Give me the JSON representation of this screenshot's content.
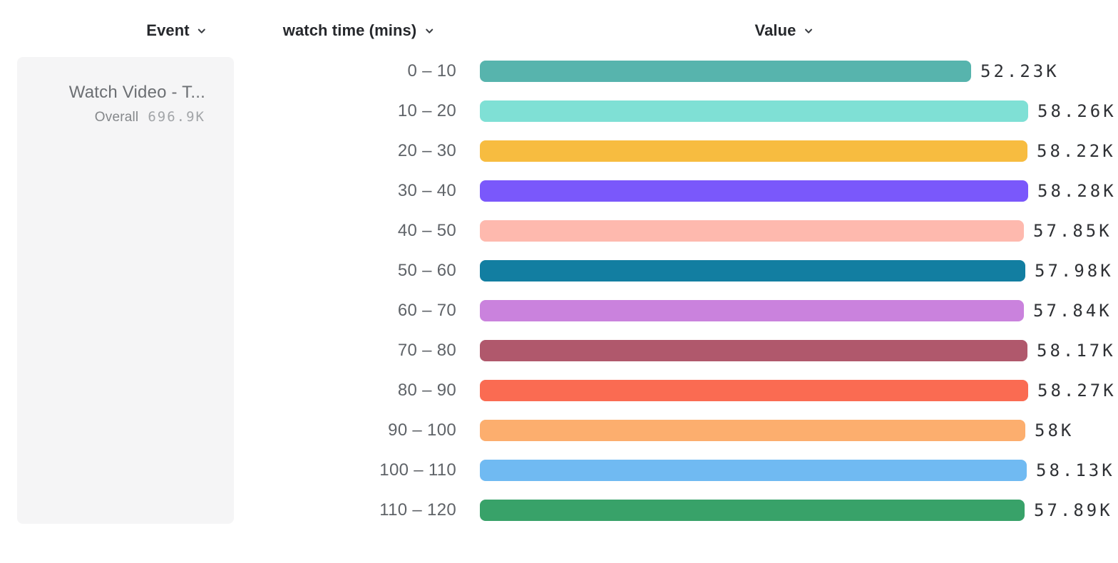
{
  "header": {
    "event_column_label": "Event",
    "breakdown_column_label": "watch time (mins)",
    "value_column_label": "Value"
  },
  "event_card": {
    "title": "Watch Video - T...",
    "overall_label": "Overall",
    "overall_value": "696.9K"
  },
  "chart_data": {
    "type": "bar",
    "orientation": "horizontal",
    "title": "",
    "xlabel": "Value",
    "ylabel": "watch time (mins)",
    "xlim": [
      0,
      58280
    ],
    "grid": false,
    "legend": false,
    "categories": [
      "0 – 10",
      "10 – 20",
      "20 – 30",
      "30 – 40",
      "40 – 50",
      "50 – 60",
      "60 – 70",
      "70 – 80",
      "80 – 90",
      "90 – 100",
      "100 – 110",
      "110 – 120"
    ],
    "values": [
      52230,
      58260,
      58220,
      58280,
      57850,
      57980,
      57840,
      58170,
      58270,
      58000,
      58130,
      57890
    ],
    "value_labels": [
      "52.23K",
      "58.26K",
      "58.22K",
      "58.28K",
      "57.85K",
      "57.98K",
      "57.84K",
      "58.17K",
      "58.27K",
      "58K",
      "58.13K",
      "57.89K"
    ],
    "bar_colors": [
      "#57b4ad",
      "#7fe0d5",
      "#f7bc40",
      "#7a58fb",
      "#feb9ae",
      "#127ea1",
      "#ca82dd",
      "#b0586c",
      "#fa6b52",
      "#fcae6e",
      "#70baf2",
      "#38a269"
    ]
  }
}
